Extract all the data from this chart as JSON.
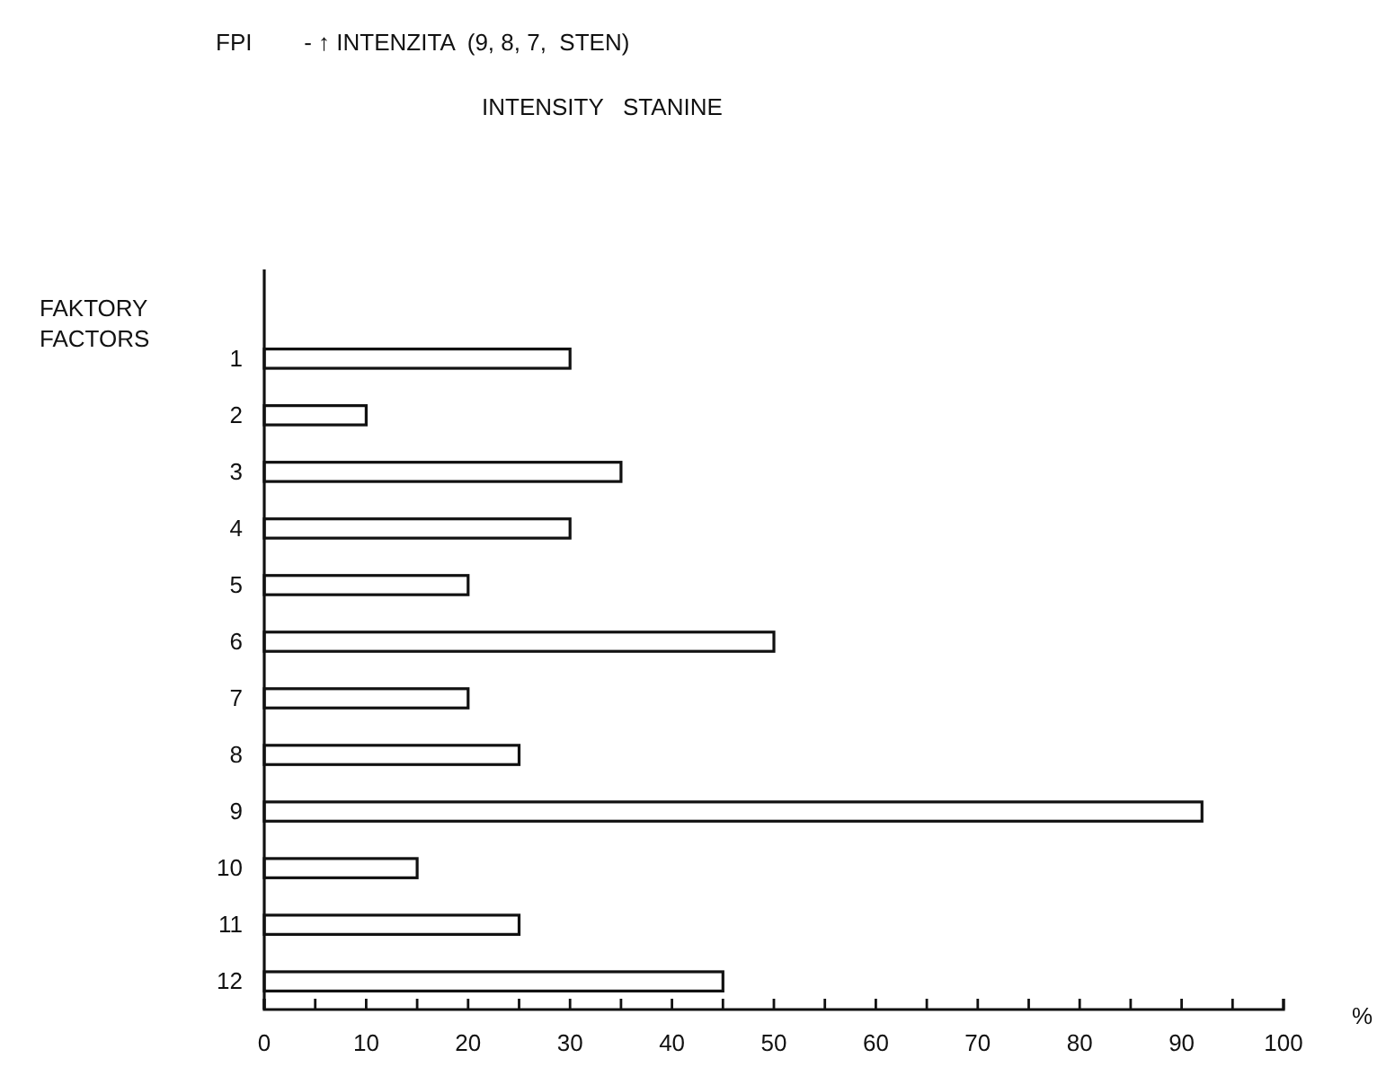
{
  "chart_data": {
    "type": "bar",
    "orientation": "horizontal",
    "title": "FPI        - ↑ INTENZITA  (9, 8, 7,  STEN)",
    "subtitle": "INTENSITY   STANINE",
    "ylabel": "FAKTORY\nFACTORS",
    "xlabel": "%",
    "categories": [
      "1",
      "2",
      "3",
      "4",
      "5",
      "6",
      "7",
      "8",
      "9",
      "10",
      "11",
      "12"
    ],
    "values": [
      30,
      10,
      35,
      30,
      20,
      50,
      20,
      25,
      92,
      15,
      25,
      45
    ],
    "color": "#ffffff",
    "xlim": [
      0,
      100
    ],
    "xticks": [
      0,
      {
        "value": 5,
        "label": null
      },
      10,
      {
        "value": 15,
        "label": null
      },
      20,
      {
        "value": 25,
        "label": null
      },
      30,
      {
        "value": 35,
        "label": null
      },
      40,
      {
        "value": 45,
        "label": null
      },
      50,
      {
        "value": 55,
        "label": null
      },
      60,
      {
        "value": 65,
        "label": null
      },
      70,
      {
        "value": 75,
        "label": null
      },
      80,
      {
        "value": 85,
        "label": null
      },
      90,
      {
        "value": 95,
        "label": null
      },
      100
    ],
    "grid": false
  }
}
